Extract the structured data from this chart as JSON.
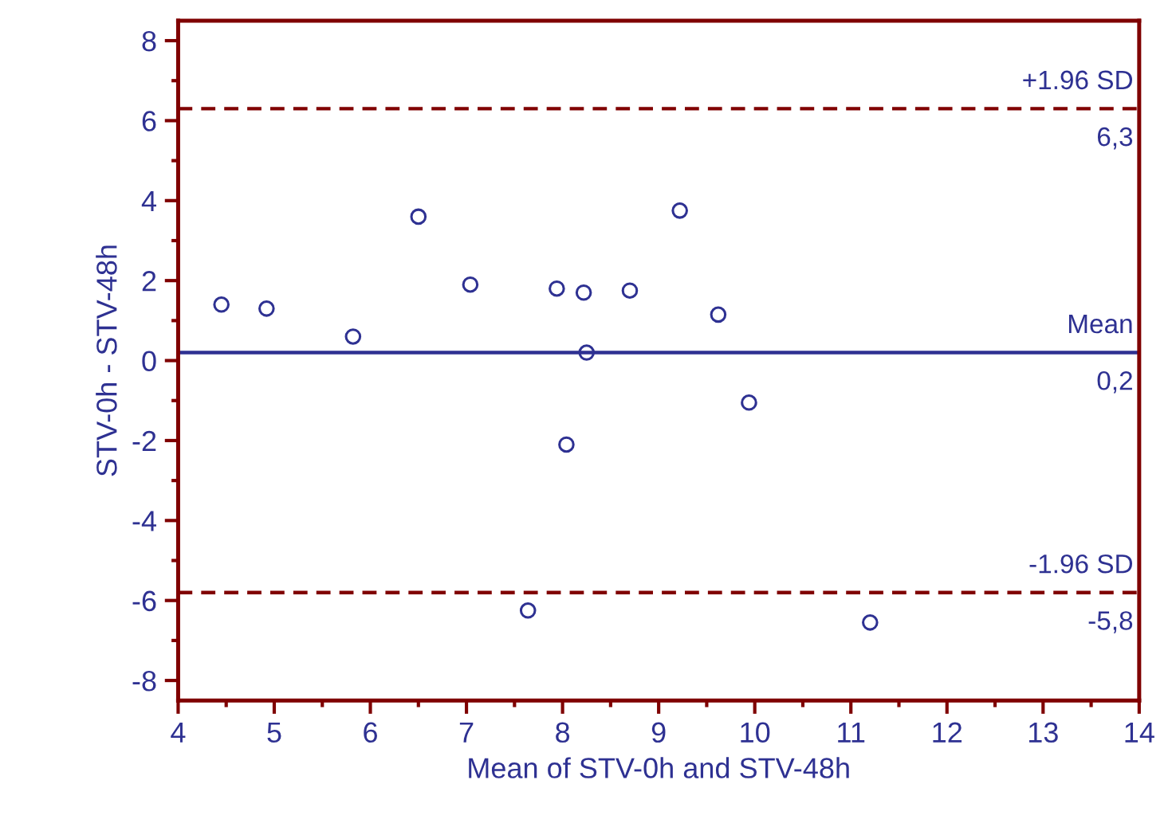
{
  "chart_data": {
    "type": "scatter",
    "xlabel": "Mean of STV-0h and STV-48h",
    "ylabel": "STV-0h - STV-48h",
    "x": [
      4.45,
      4.92,
      5.82,
      6.5,
      7.04,
      7.94,
      8.22,
      8.7,
      9.22,
      9.62,
      8.25,
      9.94,
      8.04,
      7.64,
      11.2
    ],
    "values": [
      1.4,
      1.3,
      0.6,
      3.6,
      1.9,
      1.8,
      1.7,
      1.75,
      3.75,
      1.15,
      0.2,
      -1.05,
      -2.1,
      -6.25,
      -6.55
    ],
    "color": "#2e3192",
    "marker": "circle",
    "xlim": [
      4,
      14
    ],
    "xticks": [
      4,
      5,
      6,
      7,
      8,
      9,
      10,
      11,
      12,
      13,
      14
    ],
    "ylim": [
      -8.5,
      8.5
    ],
    "yticks": [
      -8,
      -6,
      -4,
      -2,
      0,
      2,
      4,
      6,
      8
    ],
    "ref_lines": [
      {
        "axis": "y",
        "value": 6.3,
        "label": "+1.96 SD",
        "color": "#800000",
        "line_style": "dashed"
      },
      {
        "axis": "y",
        "value": 0.2,
        "label": "Mean",
        "color": "#2e3192",
        "line_style": "solid"
      },
      {
        "axis": "y",
        "value": -5.8,
        "label": "-1.96 SD",
        "color": "#800000",
        "line_style": "dashed"
      }
    ],
    "annotations": [
      {
        "text": "6,3",
        "y": 6.3
      },
      {
        "text": "0,2",
        "y": 0.2
      },
      {
        "text": "-5,8",
        "y": -5.8
      }
    ],
    "grid": false,
    "legend": false
  }
}
